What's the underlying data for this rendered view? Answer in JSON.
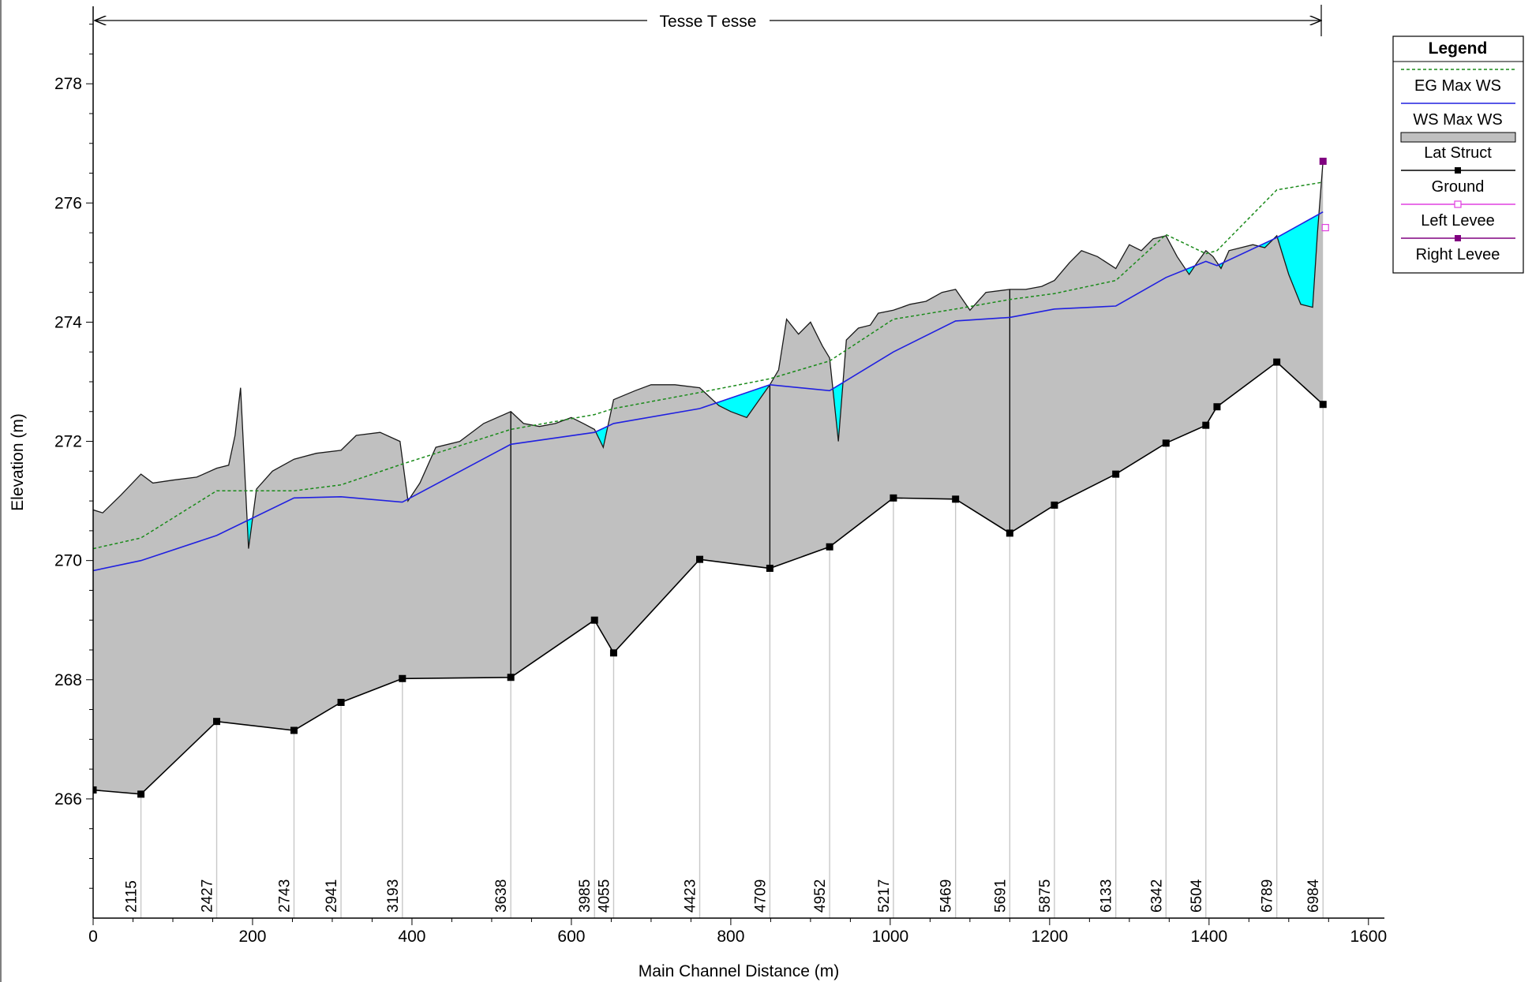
{
  "chart_data": {
    "type": "line",
    "title": "Tesse T esse",
    "xlabel": "Main Channel Distance (m)",
    "ylabel": "Elevation (m)",
    "xlim": [
      0,
      1620
    ],
    "ylim": [
      264.0,
      279.3
    ],
    "x_ticks": [
      0,
      200,
      400,
      600,
      800,
      1000,
      1200,
      1400,
      1600
    ],
    "y_ticks": [
      266,
      268,
      270,
      272,
      274,
      276,
      278
    ],
    "grid": false,
    "legend_position": "top-right",
    "legend": {
      "title": "Legend",
      "entries": [
        "EG  Max WS",
        "WS  Max WS",
        "Lat Struct",
        "Ground",
        "Left Levee",
        "Right Levee"
      ]
    },
    "colors": {
      "eg": "#1a8a1a",
      "ws": "#2020e0",
      "lat_struct_fill": "#c0c0c0",
      "water_fill": "#00ffff",
      "ground": "#000000",
      "left_levee": "#e040e0",
      "right_levee": "#800080",
      "station_line": "#c8c8c8"
    },
    "stations": [
      "2115",
      "2427",
      "2743",
      "2941",
      "3193",
      "3638",
      "3985",
      "4055",
      "4423",
      "4709",
      "4952",
      "5217",
      "5469",
      "5691",
      "5875",
      "6133",
      "6342",
      "6504",
      "6789",
      "6984"
    ],
    "station_x": [
      60,
      155,
      252,
      311,
      388,
      524,
      629,
      653,
      761,
      849,
      924,
      1004,
      1082,
      1150,
      1206,
      1283,
      1346,
      1396,
      1485,
      1543
    ],
    "series": [
      {
        "name": "Ground",
        "x": [
          0,
          60,
          155,
          252,
          311,
          388,
          524,
          629,
          653,
          761,
          849,
          924,
          1004,
          1082,
          1150,
          1206,
          1283,
          1346,
          1396,
          1410,
          1485,
          1543
        ],
        "y": [
          266.15,
          266.08,
          267.3,
          267.15,
          267.62,
          268.02,
          268.04,
          269.0,
          268.45,
          270.02,
          269.87,
          270.23,
          271.05,
          271.03,
          270.46,
          270.93,
          271.45,
          271.97,
          272.27,
          272.58,
          273.33,
          272.62
        ]
      },
      {
        "name": "WS  Max WS",
        "x": [
          0,
          60,
          155,
          252,
          311,
          388,
          524,
          629,
          653,
          761,
          849,
          924,
          1004,
          1082,
          1150,
          1206,
          1283,
          1346,
          1396,
          1410,
          1485,
          1543
        ],
        "y": [
          269.83,
          270.0,
          270.42,
          271.05,
          271.07,
          270.98,
          271.95,
          272.15,
          272.3,
          272.55,
          272.95,
          272.85,
          273.5,
          274.02,
          274.08,
          274.22,
          274.27,
          274.75,
          275.02,
          274.95,
          275.42,
          275.85
        ]
      },
      {
        "name": "EG  Max WS",
        "x": [
          0,
          60,
          155,
          252,
          311,
          388,
          524,
          629,
          653,
          761,
          849,
          924,
          1004,
          1082,
          1150,
          1206,
          1283,
          1346,
          1396,
          1410,
          1485,
          1543
        ],
        "y": [
          270.2,
          270.38,
          271.17,
          271.17,
          271.27,
          271.62,
          272.2,
          272.45,
          272.55,
          272.82,
          273.05,
          273.35,
          274.05,
          274.22,
          274.38,
          274.48,
          274.7,
          275.47,
          275.15,
          275.2,
          276.22,
          276.35
        ]
      },
      {
        "name": "Lat Struct",
        "x": [
          0,
          12,
          35,
          60,
          75,
          100,
          130,
          155,
          170,
          178,
          185,
          195,
          205,
          225,
          252,
          280,
          311,
          330,
          360,
          385,
          395,
          410,
          430,
          460,
          490,
          524,
          540,
          560,
          580,
          600,
          615,
          629,
          640,
          653,
          680,
          700,
          730,
          761,
          785,
          800,
          820,
          849,
          860,
          870,
          885,
          900,
          915,
          924,
          935,
          945,
          960,
          975,
          985,
          1004,
          1025,
          1045,
          1065,
          1082,
          1100,
          1120,
          1150,
          1170,
          1190,
          1206,
          1225,
          1240,
          1260,
          1283,
          1300,
          1315,
          1330,
          1346,
          1360,
          1375,
          1385,
          1396,
          1405,
          1415,
          1425,
          1440,
          1455,
          1470,
          1485,
          1500,
          1515,
          1530,
          1536,
          1543
        ],
        "y": [
          270.85,
          270.8,
          271.1,
          271.45,
          271.3,
          271.35,
          271.4,
          271.55,
          271.6,
          272.1,
          272.9,
          270.2,
          271.2,
          271.5,
          271.7,
          271.8,
          271.85,
          272.1,
          272.15,
          272.0,
          271.0,
          271.3,
          271.9,
          272.0,
          272.3,
          272.5,
          272.3,
          272.25,
          272.3,
          272.4,
          272.3,
          272.2,
          271.9,
          272.7,
          272.85,
          272.95,
          272.95,
          272.9,
          272.6,
          272.5,
          272.4,
          272.95,
          273.2,
          274.05,
          273.8,
          274.0,
          273.6,
          273.4,
          272.0,
          273.7,
          273.9,
          273.95,
          274.15,
          274.2,
          274.3,
          274.35,
          274.5,
          274.55,
          274.2,
          274.5,
          274.55,
          274.55,
          274.6,
          274.7,
          275.0,
          275.2,
          275.1,
          274.9,
          275.3,
          275.2,
          275.4,
          275.45,
          275.1,
          274.8,
          275.0,
          275.2,
          275.1,
          274.9,
          275.2,
          275.25,
          275.3,
          275.25,
          275.45,
          274.8,
          274.3,
          274.25,
          275.5,
          276.7
        ]
      }
    ],
    "left_levee": {
      "x": 1543,
      "y": 275.58
    },
    "right_levee": {
      "x": 1543,
      "y": 276.7
    }
  }
}
